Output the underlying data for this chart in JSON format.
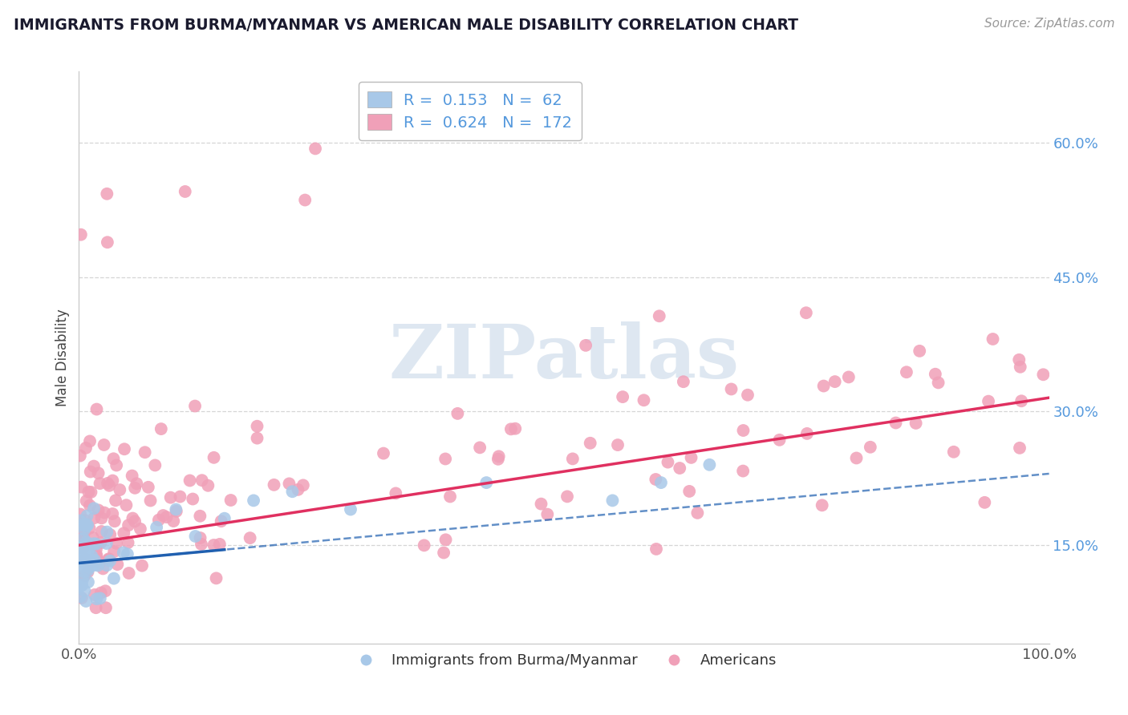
{
  "title": "IMMIGRANTS FROM BURMA/MYANMAR VS AMERICAN MALE DISABILITY CORRELATION CHART",
  "source": "Source: ZipAtlas.com",
  "ylabel": "Male Disability",
  "ytick_labels": [
    "15.0%",
    "30.0%",
    "45.0%",
    "60.0%"
  ],
  "ytick_vals": [
    0.15,
    0.3,
    0.45,
    0.6
  ],
  "xlim": [
    0.0,
    1.0
  ],
  "ylim": [
    0.04,
    0.68
  ],
  "blue_R": 0.153,
  "blue_N": 62,
  "pink_R": 0.624,
  "pink_N": 172,
  "blue_scatter_color": "#a8c8e8",
  "blue_line_color": "#2060b0",
  "pink_scatter_color": "#f0a0b8",
  "pink_line_color": "#e03060",
  "background_color": "#ffffff",
  "grid_color": "#cccccc",
  "ytick_color": "#5599dd",
  "title_color": "#1a1a2e",
  "source_color": "#999999",
  "legend_label_blue": "Immigrants from Burma/Myanmar",
  "legend_label_pink": "Americans",
  "watermark_text": "ZIPatlas",
  "watermark_color": "#c8d8e8",
  "watermark_alpha": 0.6
}
